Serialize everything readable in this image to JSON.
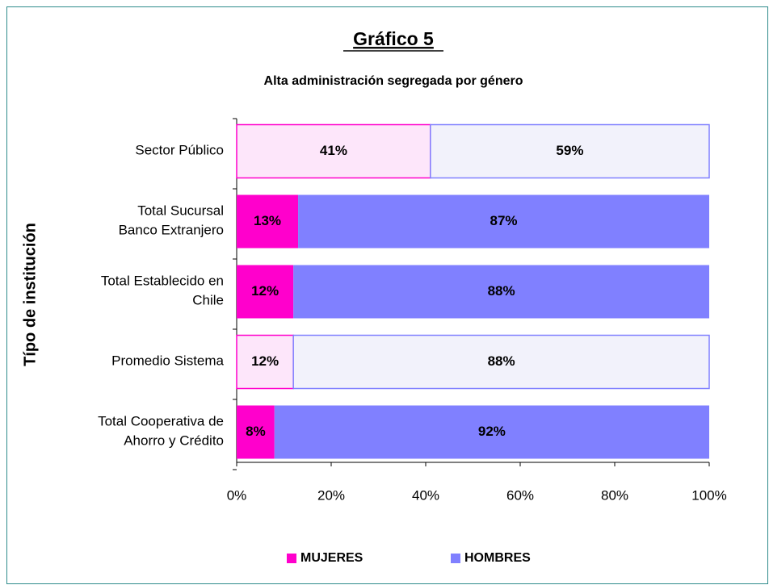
{
  "chart_data": {
    "type": "stacked_barh",
    "title": "Gráfico 5",
    "subtitle": "Alta administración segregada por género",
    "y_label": "Típo de institución",
    "categories": [
      "Sector Público",
      "Total Sucursal\nBanco Extranjero",
      "Total Establecido en\nChile",
      "Promedio Sistema",
      "Total Cooperativa de\nAhorro y Crédito"
    ],
    "series": [
      {
        "name": "MUJERES",
        "color": "#ff00cc",
        "colors": [
          "#fde6fa",
          "#ff00cc",
          "#ff00cc",
          "#fde6fa",
          "#ff00cc"
        ],
        "values": [
          41,
          13,
          12,
          12,
          8
        ],
        "value_labels": [
          "41%",
          "13%",
          "12%",
          "12%",
          "8%"
        ]
      },
      {
        "name": "HOMBRES",
        "color": "#8080ff",
        "colors": [
          "#f2f2fb",
          "#8080ff",
          "#8080ff",
          "#f2f2fb",
          "#8080ff"
        ],
        "values": [
          59,
          87,
          88,
          88,
          92
        ],
        "value_labels": [
          "59%",
          "87%",
          "88%",
          "88%",
          "92%"
        ]
      }
    ],
    "xlim": [
      0,
      100
    ],
    "xticks": [
      {
        "value": 0,
        "label": "0%"
      },
      {
        "value": 20,
        "label": "20%"
      },
      {
        "value": 40,
        "label": "40%"
      },
      {
        "value": 60,
        "label": "60%"
      },
      {
        "value": 80,
        "label": "80%"
      },
      {
        "value": 100,
        "label": "100%"
      }
    ],
    "legend": "bottom"
  }
}
